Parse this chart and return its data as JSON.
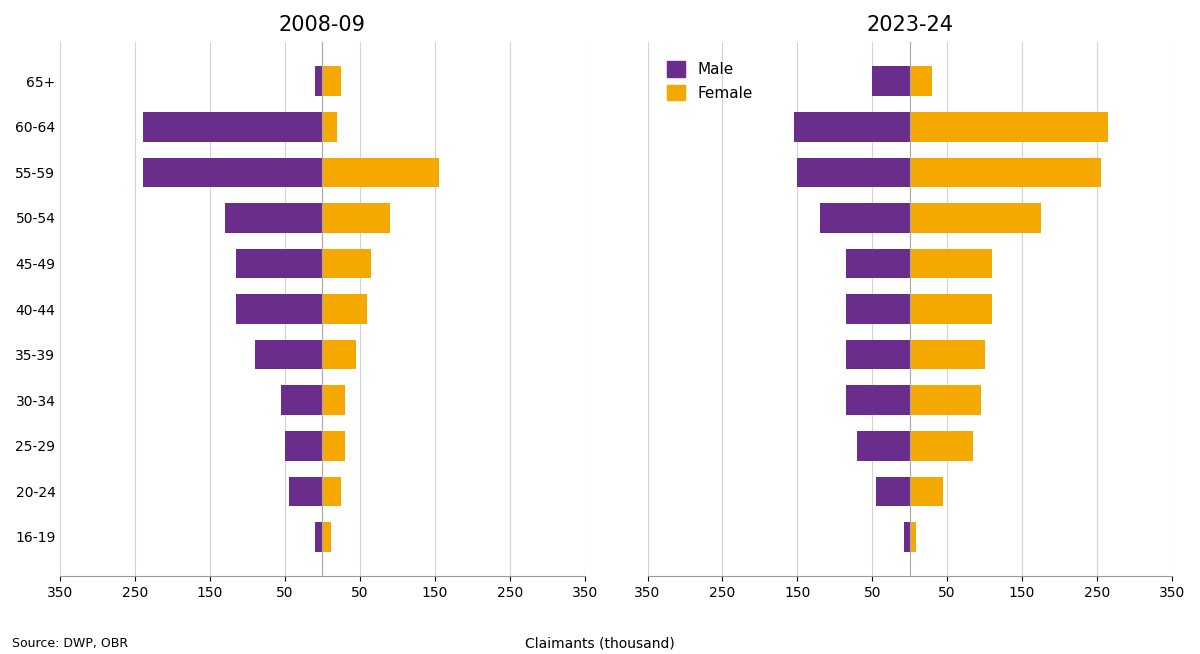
{
  "title_left": "2008-09",
  "title_right": "2023-24",
  "age_groups": [
    "65+",
    "60-64",
    "55-59",
    "50-54",
    "45-49",
    "40-44",
    "35-39",
    "30-34",
    "25-29",
    "20-24",
    "16-19"
  ],
  "data_2008": {
    "male": [
      10,
      240,
      240,
      130,
      115,
      115,
      90,
      55,
      50,
      45,
      10
    ],
    "female": [
      25,
      20,
      155,
      90,
      65,
      60,
      45,
      30,
      30,
      25,
      12
    ]
  },
  "data_2023": {
    "male": [
      50,
      155,
      150,
      120,
      85,
      85,
      85,
      85,
      70,
      45,
      8
    ],
    "female": [
      30,
      265,
      255,
      175,
      110,
      110,
      100,
      95,
      85,
      45,
      8
    ]
  },
  "xlim": 350,
  "xlabel": "Claimants (thousand)",
  "legend_male_label": "Male",
  "legend_female_label": "Female",
  "male_color": "#6b2d8b",
  "female_color": "#f5a800",
  "source_text": "Source: DWP, OBR",
  "title_fontsize": 15,
  "axis_fontsize": 10,
  "legend_fontsize": 11,
  "bar_height": 0.65
}
